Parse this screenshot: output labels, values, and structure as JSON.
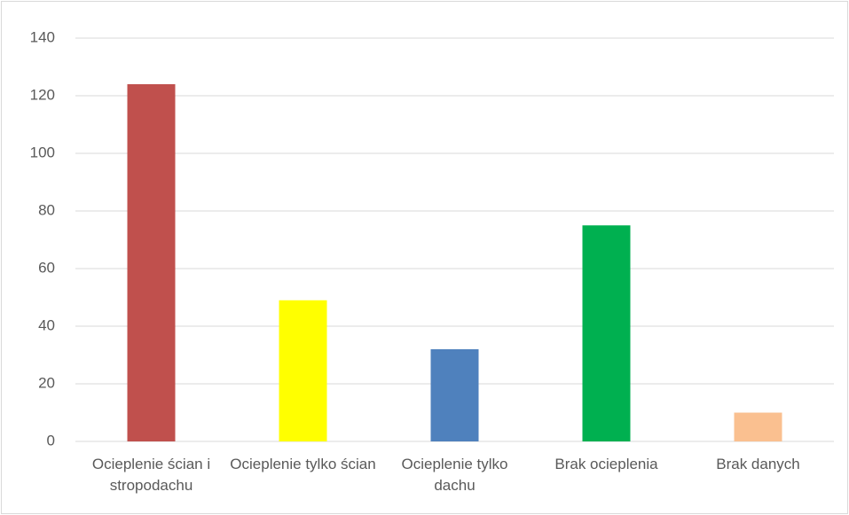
{
  "chart_data": {
    "type": "bar",
    "categories": [
      "Ocieplenie ścian i stropodachu",
      "Ocieplenie tylko ścian",
      "Ocieplenie tylko dachu",
      "Brak ocieplenia",
      "Brak danych"
    ],
    "values": [
      124,
      49,
      32,
      75,
      10
    ],
    "colors": [
      "#c0504d",
      "#ffff00",
      "#4f81bd",
      "#00b050",
      "#fac090"
    ],
    "ylim": [
      0,
      140
    ],
    "yticks": [
      0,
      20,
      40,
      60,
      80,
      100,
      120,
      140
    ],
    "grid": true
  }
}
